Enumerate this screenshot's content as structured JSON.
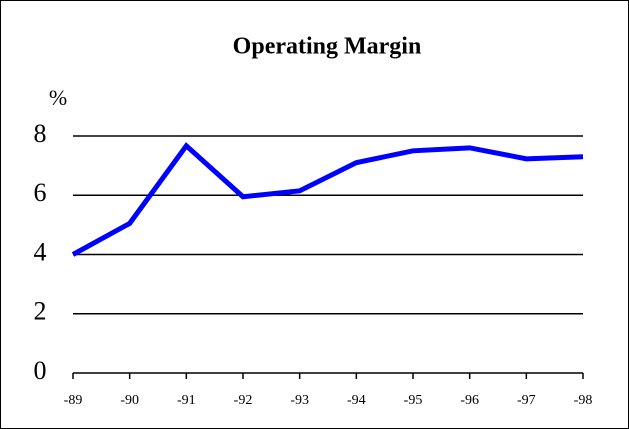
{
  "chart_data": {
    "type": "line",
    "title": "Operating Margin",
    "y_label": "%",
    "categories": [
      "-89",
      "-90",
      "-91",
      "-92",
      "-93",
      "-94",
      "-95",
      "-96",
      "-97",
      "-98"
    ],
    "values": [
      4.0,
      5.05,
      7.67,
      5.95,
      6.15,
      7.1,
      7.5,
      7.6,
      7.23,
      7.3
    ],
    "color": "#0000ff",
    "ylim": [
      0,
      8
    ],
    "yticks": [
      0,
      2,
      4,
      6,
      8
    ],
    "grid": true
  }
}
